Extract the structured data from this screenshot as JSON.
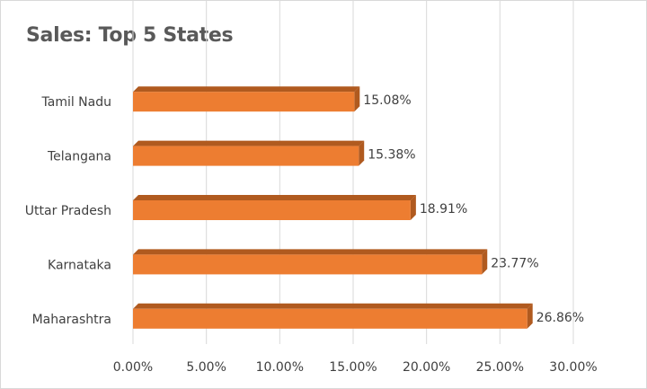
{
  "chart_data": {
    "type": "bar",
    "orientation": "horizontal",
    "title": "Sales: Top 5 States",
    "categories": [
      "Tamil Nadu",
      "Telangana",
      "Uttar Pradesh",
      "Karnataka",
      "Maharashtra"
    ],
    "values": [
      15.08,
      15.38,
      18.91,
      23.77,
      26.86
    ],
    "data_labels": [
      "15.08%",
      "15.38%",
      "18.91%",
      "23.77%",
      "26.86%"
    ],
    "xlim": [
      0,
      30
    ],
    "x_ticks": [
      0,
      5,
      10,
      15,
      20,
      25,
      30
    ],
    "x_tick_labels": [
      "0.00%",
      "5.00%",
      "10.00%",
      "15.00%",
      "20.00%",
      "25.00%",
      "30.00%"
    ],
    "grid": true,
    "legend": "none",
    "colors": {
      "bar_front": "#ED7D31",
      "bar_top": "#F4A56C",
      "bar_side": "#B05A1F",
      "grid": "#d9d9d9"
    }
  }
}
